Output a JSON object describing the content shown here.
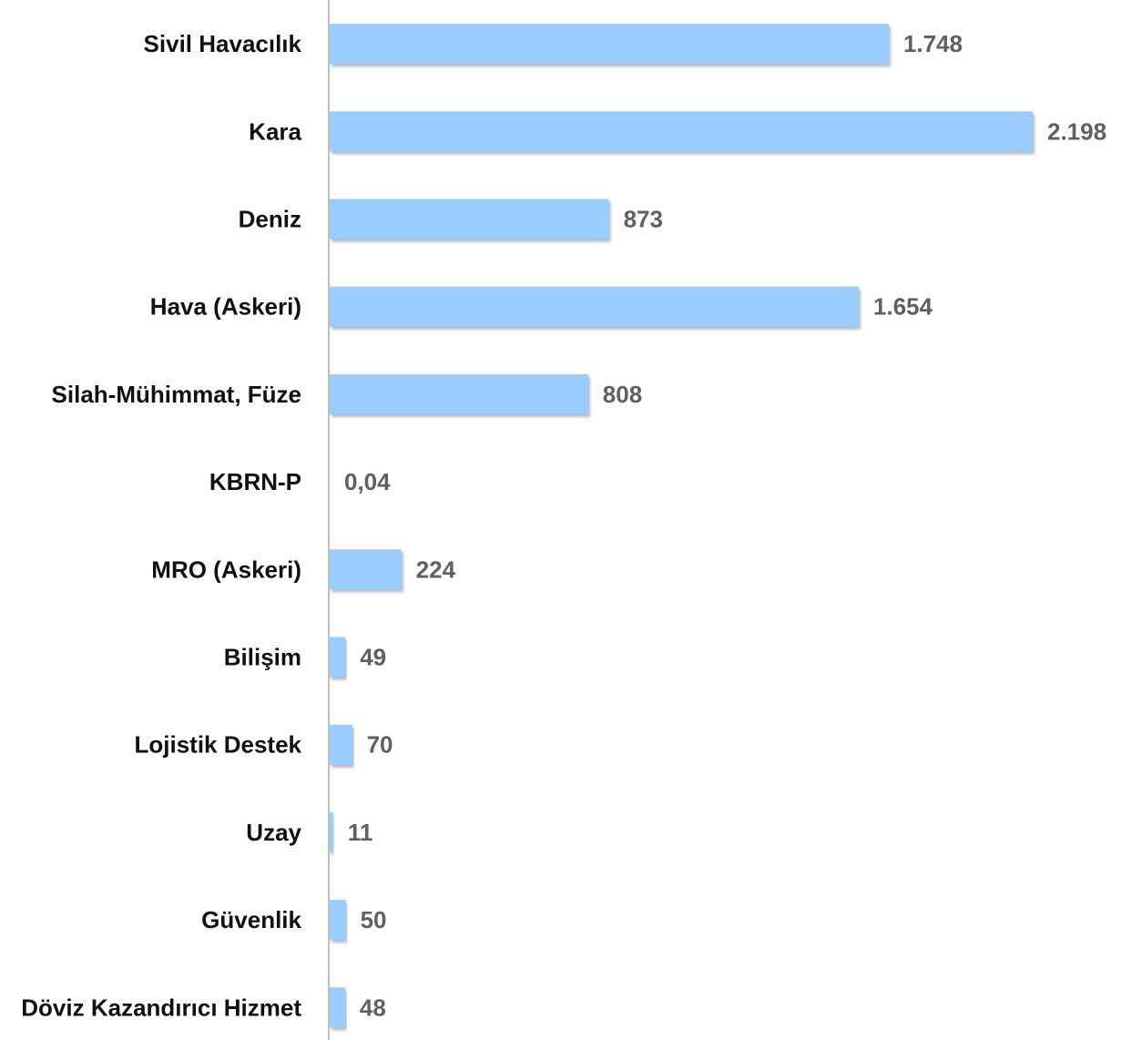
{
  "chart_data": {
    "type": "bar",
    "orientation": "horizontal",
    "categories": [
      "Sivil Havacılık",
      "Kara",
      "Deniz",
      "Hava (Askeri)",
      "Silah-Mühimmat, Füze",
      "KBRN-P",
      "MRO (Askeri)",
      "Bilişim",
      "Lojistik Destek",
      "Uzay",
      "Güvenlik",
      "Döviz Kazandırıcı Hizmet"
    ],
    "values": [
      1748,
      2198,
      873,
      1654,
      808,
      0.04,
      224,
      49,
      70,
      11,
      50,
      48
    ],
    "value_labels": [
      "1.748",
      "2.198",
      "873",
      "1.654",
      "808",
      "0,04",
      "224",
      "49",
      "70",
      "11",
      "50",
      "48"
    ],
    "title": "",
    "xlabel": "",
    "ylabel": "",
    "xlim": [
      0,
      2198
    ],
    "grid": false,
    "legend": "none",
    "colors": {
      "bar": "#99CCFF",
      "bar_shadow": "#8a8a8a",
      "axis": "#bfbfbf",
      "category_text": "#111111",
      "value_text": "#606060"
    }
  }
}
